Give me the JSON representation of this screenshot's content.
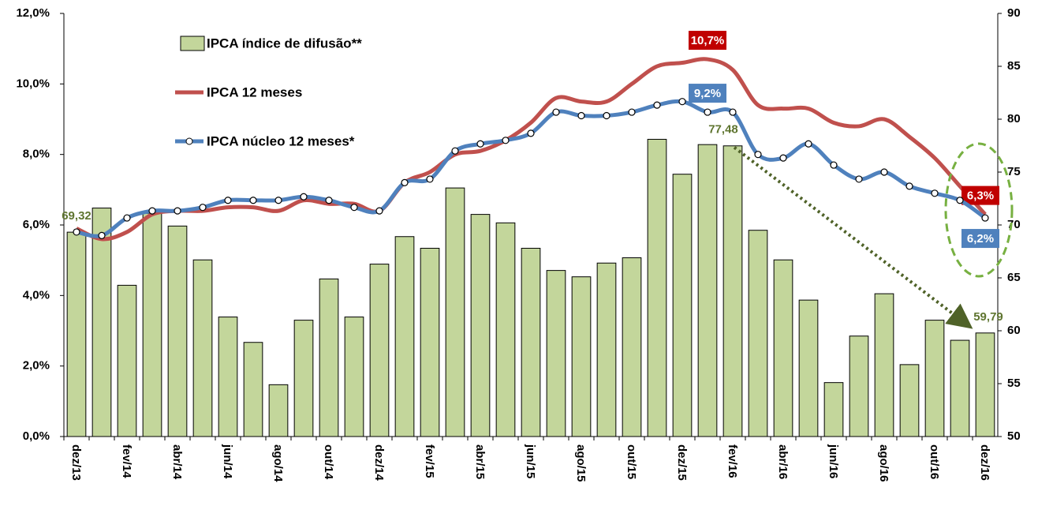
{
  "chart_data": {
    "type": "bar",
    "categories": [
      "dez/13",
      null,
      "fev/14",
      null,
      "abr/14",
      null,
      "jun/14",
      null,
      "ago/14",
      null,
      "out/14",
      null,
      "dez/14",
      null,
      "fev/15",
      null,
      "abr/15",
      null,
      "jun/15",
      null,
      "ago/15",
      null,
      "out/15",
      null,
      "dez/15",
      null,
      "fev/16",
      null,
      "abr/16",
      null,
      "jun/16",
      null,
      "ago/16",
      null,
      "out/16",
      null,
      "dez/16"
    ],
    "ylim": [
      0,
      12
    ],
    "yticks": [
      {
        "value": 0,
        "label": "0,0%"
      },
      {
        "value": 2,
        "label": "2,0%"
      },
      {
        "value": 4,
        "label": "4,0%"
      },
      {
        "value": 6,
        "label": "6,0%"
      },
      {
        "value": 8,
        "label": "8,0%"
      },
      {
        "value": 10,
        "label": "10,0%"
      },
      {
        "value": 12,
        "label": "12,0%"
      }
    ],
    "y2lim": [
      50,
      90
    ],
    "y2ticks": [
      50,
      55,
      60,
      65,
      70,
      75,
      80,
      85,
      90
    ],
    "series": [
      {
        "name": "IPCA índice de difusão**",
        "type": "bar",
        "axis": "y2",
        "color": "#c3d69b",
        "values": [
          69.32,
          71.6,
          64.3,
          71.1,
          69.9,
          66.7,
          61.3,
          58.9,
          54.9,
          61.0,
          64.9,
          61.3,
          66.3,
          68.9,
          67.8,
          73.5,
          71.0,
          70.2,
          67.8,
          65.7,
          65.1,
          66.4,
          66.9,
          78.1,
          74.8,
          77.6,
          77.48,
          69.5,
          66.7,
          62.9,
          55.1,
          59.5,
          63.5,
          56.8,
          61.0,
          59.1,
          59.79
        ],
        "value_labels": [
          "69,32",
          null,
          null,
          null,
          null,
          null,
          null,
          null,
          null,
          null,
          null,
          null,
          null,
          null,
          null,
          null,
          null,
          null,
          null,
          null,
          null,
          null,
          null,
          null,
          null,
          null,
          "77,48",
          null,
          null,
          null,
          null,
          null,
          null,
          null,
          null,
          null,
          "59,79"
        ]
      },
      {
        "name": "IPCA 12 meses",
        "type": "line",
        "color": "#c0504d",
        "values": [
          5.9,
          5.6,
          5.8,
          6.3,
          6.4,
          6.4,
          6.5,
          6.5,
          6.4,
          6.7,
          6.6,
          6.6,
          6.4,
          7.2,
          7.5,
          8.0,
          8.1,
          8.4,
          8.9,
          9.6,
          9.5,
          9.5,
          10.0,
          10.5,
          10.6,
          10.7,
          10.4,
          9.4,
          9.3,
          9.3,
          8.9,
          8.8,
          9.0,
          8.5,
          7.9,
          7.1,
          6.3
        ],
        "value_labels": [
          null,
          null,
          null,
          null,
          null,
          null,
          null,
          null,
          null,
          null,
          null,
          null,
          null,
          null,
          null,
          null,
          null,
          null,
          null,
          null,
          null,
          null,
          null,
          null,
          null,
          "10,7%",
          null,
          null,
          null,
          null,
          null,
          null,
          null,
          null,
          null,
          null,
          "6,3%"
        ]
      },
      {
        "name": "IPCA núcleo 12 meses*",
        "type": "line",
        "markers": true,
        "color": "#4f81bd",
        "values": [
          5.8,
          5.7,
          6.2,
          6.4,
          6.4,
          6.5,
          6.7,
          6.7,
          6.7,
          6.8,
          6.7,
          6.5,
          6.4,
          7.2,
          7.3,
          8.1,
          8.3,
          8.4,
          8.6,
          9.2,
          9.1,
          9.1,
          9.2,
          9.4,
          9.5,
          9.2,
          9.2,
          8.0,
          7.9,
          8.3,
          7.7,
          7.3,
          7.5,
          7.1,
          6.9,
          6.7,
          6.2
        ],
        "value_labels": [
          null,
          null,
          null,
          null,
          null,
          null,
          null,
          null,
          null,
          null,
          null,
          null,
          null,
          null,
          null,
          null,
          null,
          null,
          null,
          null,
          null,
          null,
          null,
          null,
          null,
          "9,2%",
          null,
          null,
          null,
          null,
          null,
          null,
          null,
          null,
          null,
          null,
          "6,2%"
        ]
      }
    ]
  }
}
